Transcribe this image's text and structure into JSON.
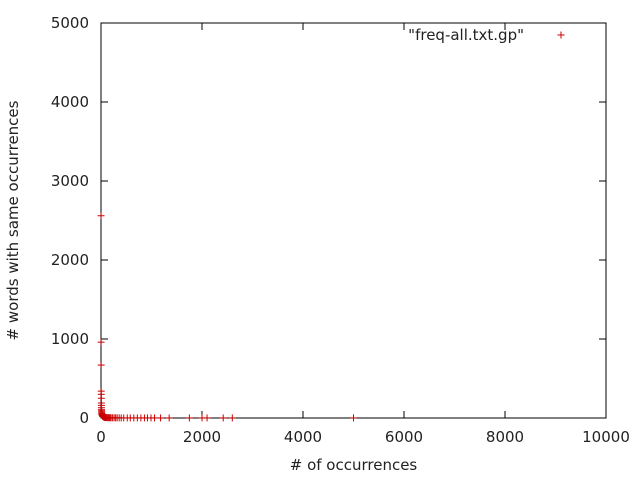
{
  "chart_data": {
    "type": "scatter",
    "title": "",
    "xlabel": "# of occurrences",
    "ylabel": "# words with same occurrences",
    "xlim": [
      0,
      10000
    ],
    "ylim": [
      0,
      5000
    ],
    "xticks": [
      0,
      2000,
      4000,
      6000,
      8000,
      10000
    ],
    "yticks": [
      0,
      1000,
      2000,
      3000,
      4000,
      5000
    ],
    "xtick_labels": [
      "0",
      "2000",
      "4000",
      "6000",
      "8000",
      "10000"
    ],
    "ytick_labels": [
      "0",
      "1000",
      "2000",
      "3000",
      "4000",
      "5000"
    ],
    "grid": false,
    "legend_position": "top-right",
    "marker": "+",
    "colors": {
      "series": "#cc0000",
      "axis": "#000000"
    },
    "series": [
      {
        "name": "\"freq-all.txt.gp\"",
        "points": [
          [
            1,
            2560
          ],
          [
            2,
            960
          ],
          [
            3,
            670
          ],
          [
            4,
            340
          ],
          [
            5,
            300
          ],
          [
            6,
            250
          ],
          [
            7,
            190
          ],
          [
            8,
            160
          ],
          [
            9,
            130
          ],
          [
            10,
            105
          ],
          [
            12,
            90
          ],
          [
            14,
            75
          ],
          [
            16,
            60
          ],
          [
            18,
            50
          ],
          [
            20,
            42
          ],
          [
            25,
            35
          ],
          [
            30,
            28
          ],
          [
            35,
            22
          ],
          [
            40,
            18
          ],
          [
            50,
            14
          ],
          [
            60,
            11
          ],
          [
            70,
            9
          ],
          [
            80,
            8
          ],
          [
            90,
            7
          ],
          [
            100,
            6
          ],
          [
            120,
            5
          ],
          [
            140,
            4
          ],
          [
            160,
            4
          ],
          [
            180,
            3
          ],
          [
            200,
            3
          ],
          [
            230,
            3
          ],
          [
            260,
            2
          ],
          [
            290,
            2
          ],
          [
            320,
            2
          ],
          [
            360,
            2
          ],
          [
            400,
            1
          ],
          [
            450,
            1
          ],
          [
            520,
            1
          ],
          [
            580,
            1
          ],
          [
            650,
            1
          ],
          [
            720,
            1
          ],
          [
            790,
            1
          ],
          [
            860,
            1
          ],
          [
            920,
            1
          ],
          [
            990,
            1
          ],
          [
            1060,
            1
          ],
          [
            1180,
            1
          ],
          [
            1350,
            1
          ],
          [
            1750,
            1
          ],
          [
            2000,
            1
          ],
          [
            2100,
            1
          ],
          [
            2420,
            1
          ],
          [
            2600,
            1
          ],
          [
            5000,
            1
          ]
        ]
      }
    ]
  }
}
